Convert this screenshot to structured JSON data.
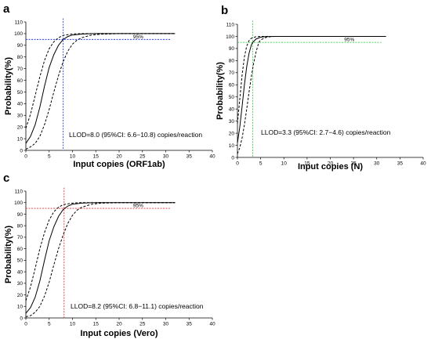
{
  "chart_data": [
    {
      "panel": "a",
      "type": "line",
      "xlabel": "Input copies (ORF1ab)",
      "ylabel": "Probability(%)",
      "xlim": [
        0,
        40
      ],
      "ylim": [
        0,
        110
      ],
      "xticks": [
        0,
        5,
        10,
        15,
        20,
        25,
        30,
        35,
        40
      ],
      "yticks": [
        0,
        10,
        20,
        30,
        40,
        50,
        60,
        70,
        80,
        90,
        100,
        110
      ],
      "grid": false,
      "reference_label": "95%",
      "reference_y": 95,
      "reference_x": 8.0,
      "reference_color": "#2b3ff0",
      "annotation": "LLOD=8.0 (95%CI: 6.6−10.8) copies/reaction",
      "series": [
        {
          "style": "solid",
          "x": [
            0,
            1,
            2,
            3,
            4,
            5,
            6,
            7,
            8,
            9,
            10,
            12,
            14,
            16,
            20,
            25,
            32
          ],
          "y": [
            6,
            12,
            22,
            37,
            55,
            71,
            82,
            90,
            95,
            97.5,
            98.8,
            99.6,
            99.9,
            100,
            100,
            100,
            100
          ]
        },
        {
          "style": "dashed",
          "x": [
            0,
            1,
            2,
            3,
            4,
            5,
            6,
            7,
            8,
            10,
            12,
            15,
            20,
            25,
            32
          ],
          "y": [
            19,
            31,
            47,
            63,
            77,
            87,
            93,
            96.5,
            98.5,
            99.7,
            100,
            100,
            100,
            100,
            100
          ]
        },
        {
          "style": "dashed",
          "x": [
            0,
            1,
            2,
            3,
            4,
            5,
            6,
            7,
            8,
            9,
            10,
            11,
            12,
            14,
            16,
            20,
            25,
            32
          ],
          "y": [
            1,
            3,
            6,
            12,
            22,
            35,
            50,
            64,
            76,
            85,
            91,
            94.5,
            96.5,
            98.7,
            99.5,
            100,
            100,
            100
          ]
        }
      ]
    },
    {
      "panel": "b",
      "type": "line",
      "xlabel": "Input copies (N)",
      "ylabel": "Probability(%)",
      "xlim": [
        0,
        40
      ],
      "ylim": [
        0,
        110
      ],
      "xticks": [
        0,
        5,
        10,
        15,
        20,
        25,
        30,
        35,
        40
      ],
      "yticks": [
        0,
        10,
        20,
        30,
        40,
        50,
        60,
        70,
        80,
        90,
        100,
        110
      ],
      "grid": false,
      "reference_label": "95%",
      "reference_y": 95,
      "reference_x": 3.3,
      "reference_color": "#3ed14a",
      "annotation": "LLOD=3.3 (95%CI: 2.7−4.6) copies/reaction",
      "series": [
        {
          "style": "solid",
          "x": [
            0,
            0.5,
            1,
            1.5,
            2,
            2.5,
            3,
            3.3,
            4,
            5,
            6,
            8,
            10,
            15,
            20,
            25,
            32
          ],
          "y": [
            12,
            25,
            42,
            60,
            75,
            86,
            93,
            95,
            97.8,
            99.3,
            99.8,
            100,
            100,
            100,
            100,
            100,
            100
          ]
        },
        {
          "style": "dashed",
          "x": [
            0,
            0.5,
            1,
            1.5,
            2,
            2.5,
            3,
            4,
            5,
            6,
            8,
            10,
            15,
            20,
            25,
            32
          ],
          "y": [
            28,
            48,
            68,
            83,
            92,
            96.5,
            98.5,
            99.7,
            100,
            100,
            100,
            100,
            100,
            100,
            100,
            100
          ]
        },
        {
          "style": "dashed",
          "x": [
            0,
            0.5,
            1,
            1.5,
            2,
            2.5,
            3,
            3.5,
            4,
            4.6,
            5,
            6,
            7,
            8,
            10,
            15,
            20,
            25,
            32
          ],
          "y": [
            3,
            8,
            16,
            27,
            40,
            54,
            67,
            78,
            87,
            95,
            97,
            99,
            99.7,
            100,
            100,
            100,
            100,
            100,
            100
          ]
        }
      ]
    },
    {
      "panel": "c",
      "type": "line",
      "xlabel": "Input copies (Vero)",
      "ylabel": "Probability(%)",
      "xlim": [
        0,
        40
      ],
      "ylim": [
        0,
        110
      ],
      "xticks": [
        0,
        5,
        10,
        15,
        20,
        25,
        30,
        35,
        40
      ],
      "yticks": [
        0,
        10,
        20,
        30,
        40,
        50,
        60,
        70,
        80,
        90,
        100,
        110
      ],
      "grid": false,
      "reference_label": "95%",
      "reference_y": 95,
      "reference_x": 8.2,
      "reference_color": "#e8323c",
      "annotation": "LLOD=8.2 (95%CI: 6.8−11.1) copies/reaction",
      "series": [
        {
          "style": "solid",
          "x": [
            0,
            1,
            2,
            3,
            4,
            5,
            6,
            7,
            8,
            9,
            10,
            12,
            14,
            16,
            20,
            25,
            32
          ],
          "y": [
            4,
            9,
            18,
            32,
            50,
            67,
            79,
            88,
            94,
            97,
            98.6,
            99.6,
            99.9,
            100,
            100,
            100,
            100
          ]
        },
        {
          "style": "dashed",
          "x": [
            0,
            1,
            2,
            3,
            4,
            5,
            6,
            7,
            8,
            10,
            12,
            15,
            20,
            25,
            32
          ],
          "y": [
            15,
            27,
            43,
            60,
            74,
            85,
            92,
            96,
            98.2,
            99.6,
            100,
            100,
            100,
            100,
            100
          ]
        },
        {
          "style": "dashed",
          "x": [
            0,
            1,
            2,
            3,
            4,
            5,
            6,
            7,
            8,
            9,
            10,
            11,
            12,
            14,
            16,
            20,
            25,
            32
          ],
          "y": [
            1,
            2,
            5,
            10,
            19,
            31,
            46,
            60,
            72,
            82,
            89,
            93.5,
            96,
            98.5,
            99.5,
            100,
            100,
            100
          ]
        }
      ]
    }
  ]
}
